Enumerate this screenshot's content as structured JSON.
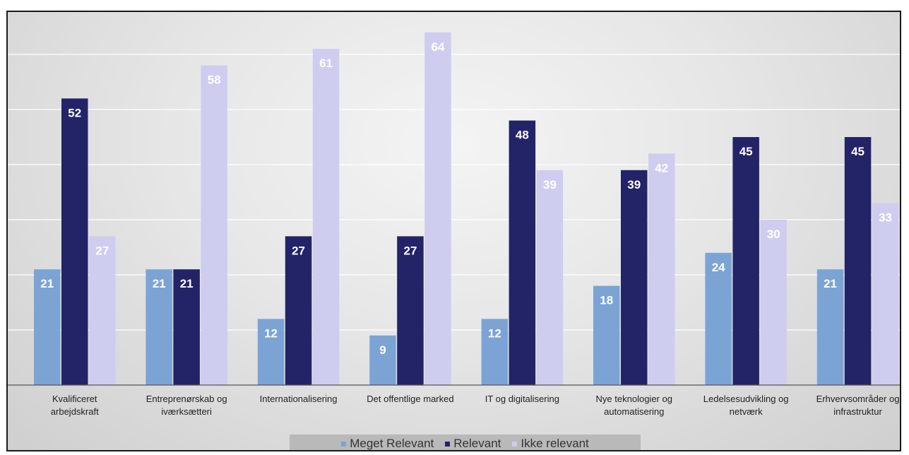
{
  "chart_data": {
    "type": "bar",
    "categories": [
      [
        "Kvalificeret",
        "arbejdskraft"
      ],
      [
        "Entreprenørskab og",
        "iværksætteri"
      ],
      [
        "Internationalisering"
      ],
      [
        "Det offentlige marked"
      ],
      [
        "IT og digitalisering"
      ],
      [
        "Nye teknologier og",
        "automatisering"
      ],
      [
        "Ledelsesudvikling og",
        "netværk"
      ],
      [
        "Erhvervsområder og",
        "infrastruktur"
      ]
    ],
    "series": [
      {
        "name": "Meget Relevant",
        "color": "#7ba4d4",
        "values": [
          21,
          21,
          12,
          9,
          12,
          18,
          24,
          21
        ]
      },
      {
        "name": "Relevant",
        "color": "#232368",
        "values": [
          52,
          21,
          27,
          27,
          48,
          39,
          45,
          45
        ]
      },
      {
        "name": "Ikke relevant",
        "color": "#cfcdef",
        "values": [
          27,
          58,
          61,
          64,
          39,
          42,
          30,
          33
        ]
      }
    ],
    "ylim": [
      0,
      70
    ],
    "grid": true,
    "legend_position": "bottom"
  }
}
